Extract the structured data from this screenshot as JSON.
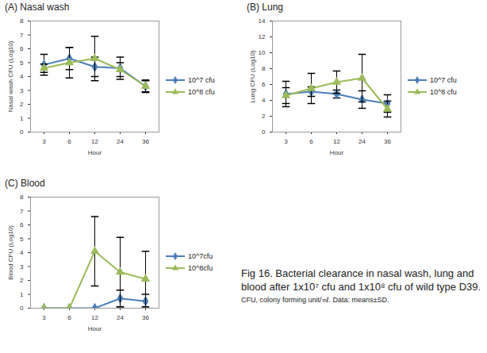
{
  "caption": [
    "Fig 16. Bacterial clearance in nasal wash, lung and blood after 1x10⁷ cfu and 1x10⁸ cfu of wild type D39.",
    "CFU, colony forming unit/㎖. Data: means±SD."
  ],
  "chart_data": [
    {
      "type": "line",
      "title": "(A) Nasal wash",
      "x_label": "Hour",
      "y_label": "Nasal wash CFU (Log10)",
      "categories": [
        3,
        6,
        12,
        24,
        36
      ],
      "ylim": [
        0,
        8
      ],
      "yticks": [
        0,
        1,
        2,
        3,
        4,
        5,
        6,
        7,
        8
      ],
      "grid": false,
      "legend": "right",
      "series": [
        {
          "name": "10^7 cfu",
          "color": "#4a7ebb",
          "marker": "diamond",
          "values": [
            4.85,
            5.3,
            4.7,
            4.6,
            3.3
          ],
          "errors": [
            0.75,
            0.8,
            0.7,
            0.8,
            0.45
          ]
        },
        {
          "name": "10^8 cfu",
          "color": "#9bbb59",
          "marker": "triangle",
          "values": [
            4.6,
            5.0,
            5.3,
            4.5,
            3.3
          ],
          "errors": [
            0.3,
            1.1,
            1.6,
            0.5,
            0.4
          ]
        }
      ]
    },
    {
      "type": "line",
      "title": "(B) Lung",
      "x_label": "Hour",
      "y_label": "Lung CFU (Log10)",
      "categories": [
        3,
        6,
        12,
        24,
        36
      ],
      "ylim": [
        0,
        14
      ],
      "yticks": [
        0,
        2,
        4,
        6,
        8,
        10,
        12,
        14
      ],
      "grid": false,
      "legend": "right",
      "series": [
        {
          "name": "10^7 cfu",
          "color": "#4a7ebb",
          "marker": "diamond",
          "values": [
            4.8,
            5.1,
            4.8,
            4.1,
            3.6
          ],
          "errors": [
            1.6,
            0.6,
            0.5,
            1.1,
            1.1
          ]
        },
        {
          "name": "10^8 cfu",
          "color": "#9bbb59",
          "marker": "triangle",
          "values": [
            4.6,
            5.5,
            6.3,
            6.8,
            2.9
          ],
          "errors": [
            1.0,
            1.9,
            1.4,
            3.0,
            1.0
          ]
        }
      ]
    },
    {
      "type": "line",
      "title": "(C) Blood",
      "x_label": "Hour",
      "y_label": "Blood CFU (Log10)",
      "categories": [
        3,
        6,
        12,
        24,
        36
      ],
      "ylim": [
        0,
        8
      ],
      "yticks": [
        0,
        1,
        2,
        3,
        4,
        5,
        6,
        7,
        8
      ],
      "grid": false,
      "legend": "right",
      "series": [
        {
          "name": "10^7cfu",
          "color": "#4a7ebb",
          "marker": "diamond",
          "values": [
            0,
            0,
            0,
            0.7,
            0.5
          ],
          "errors": [
            0,
            0,
            0,
            0.6,
            0.5
          ]
        },
        {
          "name": "10^8cfu",
          "color": "#9bbb59",
          "marker": "triangle",
          "values": [
            0,
            0,
            4.1,
            2.6,
            2.1
          ],
          "errors": [
            0,
            0,
            2.5,
            2.5,
            2.0
          ]
        }
      ]
    }
  ]
}
